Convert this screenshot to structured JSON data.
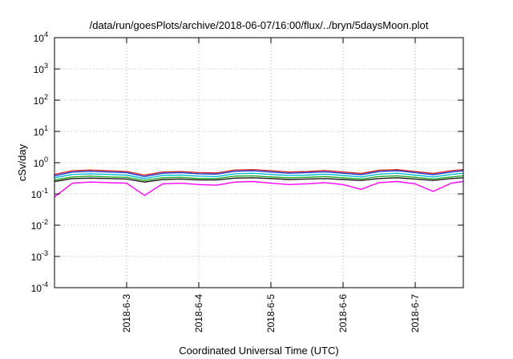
{
  "chart_data": {
    "type": "line",
    "title": "/data/run/goesPlots/archive/2018-06-07/16:00/flux/../bryn/5daysMoon.plot",
    "xlabel": "Coordinated Universal Time (UTC)",
    "ylabel": "cSv/day",
    "yscale": "log",
    "ylim": [
      0.0001,
      10000
    ],
    "yticks": [
      {
        "base": "10",
        "exp": "-4",
        "value": 0.0001
      },
      {
        "base": "10",
        "exp": "-3",
        "value": 0.001
      },
      {
        "base": "10",
        "exp": "-2",
        "value": 0.01
      },
      {
        "base": "10",
        "exp": "-1",
        "value": 0.1
      },
      {
        "base": "10",
        "exp": "0",
        "value": 1
      },
      {
        "base": "10",
        "exp": "1",
        "value": 10
      },
      {
        "base": "10",
        "exp": "2",
        "value": 100
      },
      {
        "base": "10",
        "exp": "3",
        "value": 1000
      },
      {
        "base": "10",
        "exp": "4",
        "value": 10000
      }
    ],
    "xlim": [
      "2018-06-02 00:00",
      "2018-06-07 16:00"
    ],
    "xticks": [
      {
        "label": "2018-6-3",
        "value": "2018-06-03 00:00"
      },
      {
        "label": "2018-6-4",
        "value": "2018-06-04 00:00"
      },
      {
        "label": "2018-6-5",
        "value": "2018-06-05 00:00"
      },
      {
        "label": "2018-6-6",
        "value": "2018-06-06 00:00"
      },
      {
        "label": "2018-6-7",
        "value": "2018-06-07 00:00"
      }
    ],
    "grid": true,
    "x": [
      "2018-06-02 00:00",
      "2018-06-02 06:00",
      "2018-06-02 12:00",
      "2018-06-02 18:00",
      "2018-06-03 00:00",
      "2018-06-03 06:00",
      "2018-06-03 12:00",
      "2018-06-03 18:00",
      "2018-06-04 00:00",
      "2018-06-04 06:00",
      "2018-06-04 12:00",
      "2018-06-04 18:00",
      "2018-06-05 00:00",
      "2018-06-05 06:00",
      "2018-06-05 12:00",
      "2018-06-05 18:00",
      "2018-06-06 00:00",
      "2018-06-06 06:00",
      "2018-06-06 12:00",
      "2018-06-06 18:00",
      "2018-06-07 00:00",
      "2018-06-07 06:00",
      "2018-06-07 12:00",
      "2018-06-07 16:00"
    ],
    "series": [
      {
        "color": "#d62728",
        "values": [
          0.42,
          0.55,
          0.58,
          0.55,
          0.52,
          0.4,
          0.5,
          0.52,
          0.48,
          0.47,
          0.58,
          0.6,
          0.55,
          0.5,
          0.52,
          0.56,
          0.5,
          0.45,
          0.57,
          0.6,
          0.52,
          0.45,
          0.55,
          0.6
        ]
      },
      {
        "color": "#1f3fd6",
        "values": [
          0.38,
          0.5,
          0.53,
          0.5,
          0.48,
          0.36,
          0.46,
          0.48,
          0.44,
          0.43,
          0.53,
          0.55,
          0.5,
          0.46,
          0.48,
          0.51,
          0.46,
          0.41,
          0.52,
          0.55,
          0.48,
          0.41,
          0.5,
          0.55
        ]
      },
      {
        "color": "#00bcd4",
        "values": [
          0.33,
          0.42,
          0.44,
          0.42,
          0.4,
          0.31,
          0.39,
          0.4,
          0.37,
          0.36,
          0.44,
          0.46,
          0.42,
          0.39,
          0.4,
          0.43,
          0.39,
          0.35,
          0.43,
          0.46,
          0.4,
          0.35,
          0.42,
          0.46
        ]
      },
      {
        "color": "#22a822",
        "values": [
          0.28,
          0.35,
          0.37,
          0.35,
          0.34,
          0.27,
          0.33,
          0.34,
          0.31,
          0.31,
          0.37,
          0.38,
          0.35,
          0.33,
          0.34,
          0.36,
          0.33,
          0.3,
          0.36,
          0.38,
          0.34,
          0.3,
          0.35,
          0.38
        ]
      },
      {
        "color": "#1a1a1a",
        "values": [
          0.25,
          0.31,
          0.32,
          0.31,
          0.3,
          0.24,
          0.29,
          0.3,
          0.28,
          0.28,
          0.32,
          0.33,
          0.31,
          0.29,
          0.3,
          0.31,
          0.29,
          0.27,
          0.31,
          0.33,
          0.3,
          0.27,
          0.31,
          0.33
        ]
      },
      {
        "color": "#ff00ff",
        "values": [
          0.08,
          0.22,
          0.24,
          0.23,
          0.22,
          0.09,
          0.21,
          0.22,
          0.2,
          0.19,
          0.24,
          0.25,
          0.22,
          0.2,
          0.21,
          0.23,
          0.2,
          0.14,
          0.23,
          0.25,
          0.21,
          0.12,
          0.22,
          0.25
        ]
      }
    ]
  }
}
